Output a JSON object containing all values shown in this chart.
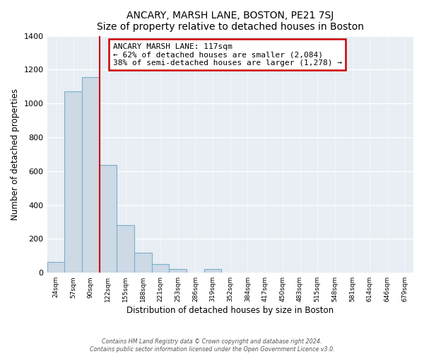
{
  "title": "ANCARY, MARSH LANE, BOSTON, PE21 7SJ",
  "subtitle": "Size of property relative to detached houses in Boston",
  "xlabel": "Distribution of detached houses by size in Boston",
  "ylabel": "Number of detached properties",
  "bar_labels": [
    "24sqm",
    "57sqm",
    "90sqm",
    "122sqm",
    "155sqm",
    "188sqm",
    "221sqm",
    "253sqm",
    "286sqm",
    "319sqm",
    "352sqm",
    "384sqm",
    "417sqm",
    "450sqm",
    "483sqm",
    "515sqm",
    "548sqm",
    "581sqm",
    "614sqm",
    "646sqm",
    "679sqm"
  ],
  "bar_values": [
    65,
    1070,
    1155,
    635,
    280,
    120,
    50,
    20,
    0,
    20,
    0,
    0,
    0,
    0,
    0,
    0,
    0,
    0,
    0,
    0,
    0
  ],
  "bar_color": "#cdd9e5",
  "bar_edge_color": "#7aaecc",
  "marker_between": [
    2,
    3
  ],
  "marker_color": "#cc0000",
  "annotation_title": "ANCARY MARSH LANE: 117sqm",
  "annotation_line1": "← 62% of detached houses are smaller (2,084)",
  "annotation_line2": "38% of semi-detached houses are larger (1,278) →",
  "ylim": [
    0,
    1400
  ],
  "yticks": [
    0,
    200,
    400,
    600,
    800,
    1000,
    1200,
    1400
  ],
  "footer1": "Contains HM Land Registry data © Crown copyright and database right 2024.",
  "footer2": "Contains public sector information licensed under the Open Government Licence v3.0.",
  "fig_bg": "#ffffff",
  "ax_bg": "#e8eef4"
}
